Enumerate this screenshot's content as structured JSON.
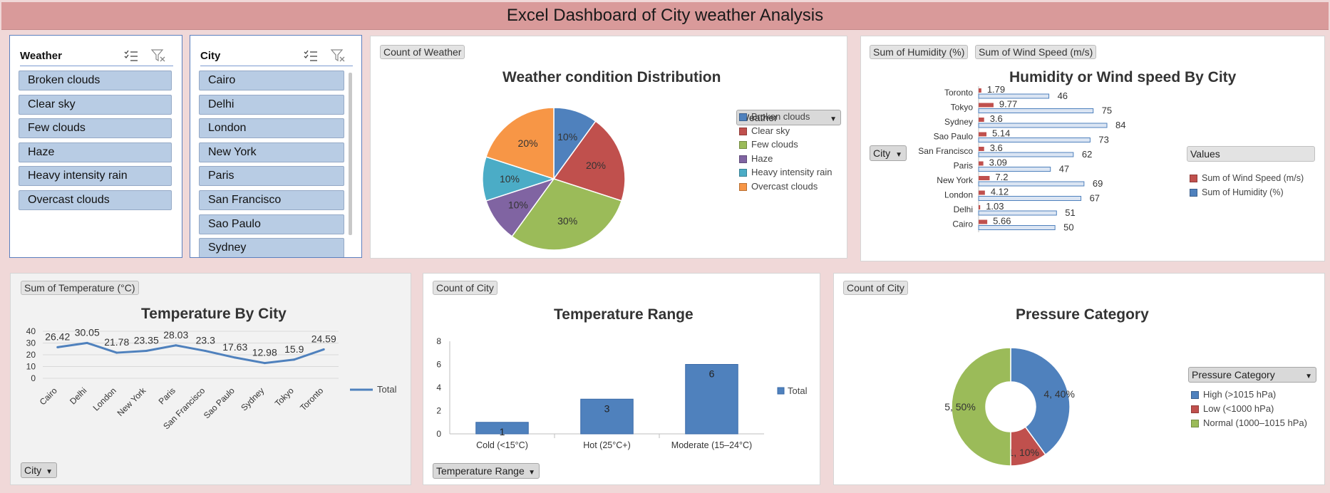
{
  "dashboard": {
    "title": "Excel Dashboard of City weather Analysis"
  },
  "slicers": {
    "weather": {
      "title": "Weather",
      "items": [
        "Broken clouds",
        "Clear sky",
        "Few clouds",
        "Haze",
        "Heavy intensity rain",
        "Overcast clouds"
      ]
    },
    "city": {
      "title": "City",
      "items": [
        "Cairo",
        "Delhi",
        "London",
        "New York",
        "Paris",
        "San Francisco",
        "Sao Paulo",
        "Sydney"
      ]
    }
  },
  "pie_panel": {
    "field_button": "Count of Weather",
    "title": "Weather condition Distribution",
    "legend_title": "Weather"
  },
  "humidity_panel": {
    "field_buttons": [
      "Sum of Humidity (%)",
      "Sum of Wind Speed (m/s)"
    ],
    "title": "Humidity or Wind speed By City",
    "axis_button": "City",
    "legend_title": "Values"
  },
  "temperature_panel": {
    "field_button": "Sum of Temperature (°C)",
    "title": "Temperature By City",
    "axis_button": "City",
    "legend": "Total"
  },
  "range_panel": {
    "field_button": "Count of City",
    "title": "Temperature Range",
    "axis_button": "Temperature Range",
    "legend": "Total"
  },
  "pressure_panel": {
    "field_button": "Count of City",
    "title": "Pressure Category",
    "legend_title": "Pressure Category"
  },
  "chart_data": [
    {
      "type": "pie",
      "title": "Weather condition Distribution",
      "legend_title": "Weather",
      "categories": [
        "Broken clouds",
        "Clear sky",
        "Few clouds",
        "Haze",
        "Heavy intensity rain",
        "Overcast clouds"
      ],
      "values": [
        1,
        2,
        3,
        1,
        1,
        2
      ],
      "data_labels": [
        "10%",
        "20%",
        "30%",
        "10%",
        "10%",
        "20%"
      ],
      "colors": [
        "#4f81bd",
        "#c0504d",
        "#9bbb59",
        "#8064a2",
        "#4bacc6",
        "#f79646"
      ]
    },
    {
      "type": "bar",
      "orientation": "horizontal",
      "title": "Humidity or Wind speed By City",
      "categories": [
        "Cairo",
        "Delhi",
        "London",
        "New York",
        "Paris",
        "San Francisco",
        "Sao Paulo",
        "Sydney",
        "Tokyo",
        "Toronto"
      ],
      "series": [
        {
          "name": "Sum of Wind Speed (m/s)",
          "values": [
            5.66,
            1.03,
            4.12,
            7.2,
            3.09,
            3.6,
            5.14,
            3.6,
            9.77,
            1.79
          ],
          "color": "#c0504d"
        },
        {
          "name": "Sum of Humidity (%)",
          "values": [
            50,
            51,
            67,
            69,
            47,
            62,
            73,
            84,
            75,
            46
          ],
          "color": "#4f81bd"
        }
      ],
      "xlim": [
        0,
        84
      ]
    },
    {
      "type": "line",
      "title": "Temperature By City",
      "categories": [
        "Cairo",
        "Delhi",
        "London",
        "New York",
        "Paris",
        "San Francisco",
        "Sao Paulo",
        "Sydney",
        "Tokyo",
        "Toronto"
      ],
      "series": [
        {
          "name": "Total",
          "values": [
            26.42,
            30.05,
            21.78,
            23.35,
            28.03,
            23.3,
            17.63,
            12.98,
            15.9,
            24.59
          ],
          "color": "#4f81bd"
        }
      ],
      "ylim": [
        0,
        40
      ],
      "yticks": [
        0,
        10,
        20,
        30,
        40
      ],
      "grid": true
    },
    {
      "type": "bar",
      "title": "Temperature Range",
      "categories": [
        "Cold (<15°C)",
        "Hot (25°C+)",
        "Moderate (15–24°C)"
      ],
      "series": [
        {
          "name": "Total",
          "values": [
            1,
            3,
            6
          ],
          "color": "#4f81bd"
        }
      ],
      "ylim": [
        0,
        8
      ],
      "yticks": [
        0,
        2,
        4,
        6,
        8
      ]
    },
    {
      "type": "pie",
      "subtype": "doughnut",
      "title": "Pressure Category",
      "legend_title": "Pressure Category",
      "categories": [
        "High (>1015 hPa)",
        "Low (<1000 hPa)",
        "Normal (1000–1015 hPa)"
      ],
      "values": [
        4,
        1,
        5
      ],
      "data_labels": [
        "4, 40%",
        "1, 10%",
        "5, 50%"
      ],
      "colors": [
        "#4f81bd",
        "#c0504d",
        "#9bbb59"
      ]
    }
  ]
}
